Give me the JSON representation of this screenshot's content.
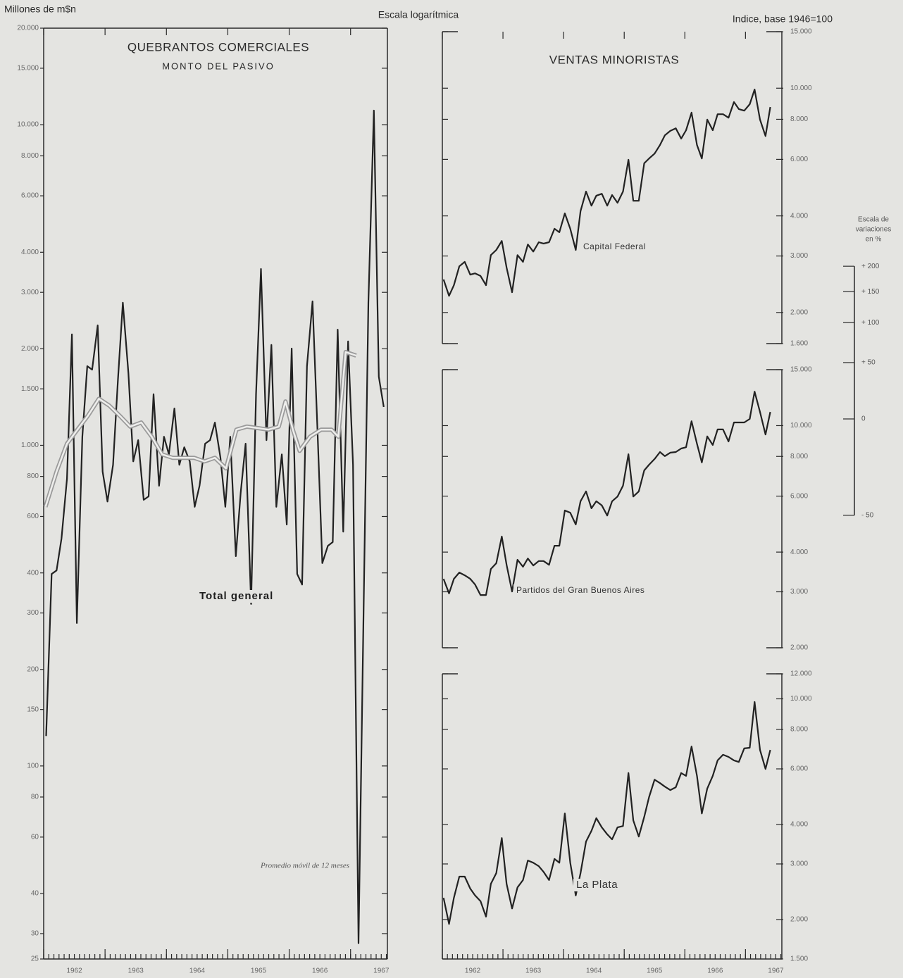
{
  "header": {
    "left_unit": "Millones de m$n",
    "center": "Escala logarítmica",
    "right_unit": "Indice, base 1946=100"
  },
  "variation_scale": {
    "title_lines": [
      "Escala de",
      "variaciones",
      "en %"
    ],
    "ticks": [
      {
        "value": 200,
        "label": "+ 200"
      },
      {
        "value": 150,
        "label": "+ 150"
      },
      {
        "value": 100,
        "label": "+ 100"
      },
      {
        "value": 50,
        "label": "+ 50"
      },
      0,
      {
        "value": -50,
        "label": "- 50"
      }
    ]
  },
  "chart_data": [
    {
      "type": "line",
      "title": "QUEBRANTOS COMERCIALES",
      "subtitle": "MONTO DEL PASIVO",
      "log_scale": true,
      "grid": false,
      "xlim": [
        1962,
        1967.6
      ],
      "ylim": [
        25,
        20000
      ],
      "xticks": [
        {
          "value": 1962.5,
          "label": "1962"
        },
        {
          "value": 1963.5,
          "label": "1963"
        },
        {
          "value": 1964.5,
          "label": "1964"
        },
        {
          "value": 1965.5,
          "label": "1965"
        },
        {
          "value": 1966.5,
          "label": "1966"
        },
        {
          "value": 1967.5,
          "label": "1967"
        }
      ],
      "yticks": [
        {
          "value": 20000,
          "label": "20.000"
        },
        {
          "value": 15000,
          "label": "15.000"
        },
        {
          "value": 10000,
          "label": "10.000"
        },
        {
          "value": 8000,
          "label": "8.000"
        },
        {
          "value": 6000,
          "label": "6.000"
        },
        {
          "value": 4000,
          "label": "4.000"
        },
        {
          "value": 3000,
          "label": "3.000"
        },
        {
          "value": 2000,
          "label": "2.000"
        },
        {
          "value": 1500,
          "label": "1.500"
        },
        {
          "value": 1000,
          "label": "1.000"
        },
        800,
        600,
        400,
        300,
        200,
        150,
        100,
        80,
        60,
        40,
        30,
        25
      ],
      "series": [
        {
          "name": "Total general",
          "color": "#222222",
          "line_style": "solid",
          "x": [
            1962.04,
            1962.13,
            1962.21,
            1962.29,
            1962.38,
            1962.46,
            1962.54,
            1962.63,
            1962.71,
            1962.79,
            1962.88,
            1962.96,
            1963.04,
            1963.13,
            1963.21,
            1963.29,
            1963.38,
            1963.46,
            1963.54,
            1963.63,
            1963.71,
            1963.79,
            1963.88,
            1963.96,
            1964.04,
            1964.13,
            1964.21,
            1964.29,
            1964.38,
            1964.46,
            1964.54,
            1964.63,
            1964.71,
            1964.79,
            1964.88,
            1964.96,
            1965.04,
            1965.13,
            1965.21,
            1965.29,
            1965.38,
            1965.46,
            1965.54,
            1965.63,
            1965.71,
            1965.79,
            1965.88,
            1965.96,
            1966.04,
            1966.13,
            1966.21,
            1966.29,
            1966.38,
            1966.46,
            1966.54,
            1966.63,
            1966.71,
            1966.79,
            1966.88,
            1966.96,
            1967.04,
            1967.13,
            1967.21,
            1967.29,
            1967.38,
            1967.46,
            1967.54
          ],
          "values": [
            124,
            397,
            407,
            512,
            787,
            2218,
            279,
            1064,
            1766,
            1722,
            2366,
            828,
            668,
            869,
            1596,
            2786,
            1679,
            891,
            1038,
            676,
            693,
            1443,
            748,
            1064,
            937,
            1303,
            869,
            986,
            891,
            643,
            748,
            1012,
            1038,
            1178,
            914,
            643,
            1064,
            451,
            711,
            1012,
            320,
            1443,
            3548,
            1038,
            2056,
            643,
            937,
            566,
            2004,
            397,
            368,
            1766,
            2812,
            1119,
            429,
            486,
            499,
            2296,
            538,
            2109,
            869,
            28,
            286,
            2786,
            11066,
            1637,
            1318
          ]
        },
        {
          "name": "Promedio móvil de 12 meses",
          "color": "#9a9a9a",
          "line_style": "double",
          "x": [
            1962.03,
            1962.21,
            1962.38,
            1962.55,
            1962.72,
            1962.9,
            1963.07,
            1963.24,
            1963.41,
            1963.59,
            1963.76,
            1963.93,
            1964.1,
            1964.28,
            1964.45,
            1964.62,
            1964.79,
            1964.97,
            1965.14,
            1965.31,
            1965.48,
            1965.66,
            1965.83,
            1965.94,
            1966.06,
            1966.17,
            1966.34,
            1966.52,
            1966.69,
            1966.8,
            1966.92,
            1967.09
          ],
          "values": [
            643,
            828,
            1012,
            1119,
            1236,
            1397,
            1330,
            1236,
            1144,
            1178,
            1064,
            937,
            914,
            914,
            914,
            891,
            914,
            847,
            1119,
            1144,
            1132,
            1119,
            1144,
            1371,
            1119,
            961,
            1064,
            1119,
            1119,
            1064,
            1954,
            1905
          ]
        }
      ]
    },
    {
      "type": "line",
      "title": "VENTAS MINORISTAS",
      "log_scale": true,
      "grid": false,
      "xlim": [
        1962,
        1967.6
      ],
      "ylim": [
        1600,
        15000
      ],
      "yticks": [
        {
          "value": 15000,
          "label": "15.000"
        },
        {
          "value": 10000,
          "label": "10.000"
        },
        {
          "value": 8000,
          "label": "8.000"
        },
        {
          "value": 6000,
          "label": "6.000"
        },
        {
          "value": 4000,
          "label": "4.000"
        },
        {
          "value": 3000,
          "label": "3.000"
        },
        {
          "value": 2000,
          "label": "2.000"
        },
        {
          "value": 1600,
          "label": "1.600"
        }
      ],
      "series": [
        {
          "name": "Capital Federal",
          "color": "#222222",
          "line_style": "solid",
          "x": [
            1962.02,
            1962.11,
            1962.19,
            1962.28,
            1962.37,
            1962.46,
            1962.54,
            1962.63,
            1962.72,
            1962.8,
            1962.89,
            1962.98,
            1963.06,
            1963.15,
            1963.24,
            1963.33,
            1963.41,
            1963.5,
            1963.59,
            1963.67,
            1963.76,
            1963.85,
            1963.93,
            1964.02,
            1964.11,
            1964.2,
            1964.28,
            1964.37,
            1964.46,
            1964.54,
            1964.63,
            1964.72,
            1964.8,
            1964.89,
            1964.98,
            1965.07,
            1965.15,
            1965.24,
            1965.33,
            1965.41,
            1965.5,
            1965.59,
            1965.67,
            1965.76,
            1965.85,
            1965.94,
            1966.02,
            1966.11,
            1966.2,
            1966.28,
            1966.37,
            1966.46,
            1966.54,
            1966.63,
            1966.72,
            1966.81,
            1966.89,
            1966.98,
            1967.07,
            1967.15,
            1967.24,
            1967.33,
            1967.41
          ],
          "values": [
            2535,
            2254,
            2432,
            2786,
            2877,
            2624,
            2649,
            2600,
            2432,
            3020,
            3133,
            3342,
            2761,
            2312,
            3020,
            2877,
            3258,
            3097,
            3311,
            3281,
            3311,
            3648,
            3556,
            4074,
            3648,
            3133,
            4140,
            4764,
            4305,
            4624,
            4688,
            4305,
            4645,
            4395,
            4764,
            5984,
            4457,
            4457,
            5834,
            6039,
            6252,
            6653,
            7129,
            7362,
            7499,
            6966,
            7396,
            8395,
            6653,
            6039,
            7980,
            7396,
            8299,
            8299,
            8091,
            9057,
            8610,
            8511,
            8913,
            9908,
            7980,
            7096,
            8730
          ]
        }
      ]
    },
    {
      "type": "line",
      "log_scale": true,
      "grid": false,
      "xlim": [
        1962,
        1967.6
      ],
      "ylim": [
        2000,
        15000
      ],
      "yticks": [
        {
          "value": 15000,
          "label": "15.000"
        },
        {
          "value": 10000,
          "label": "10.000"
        },
        {
          "value": 8000,
          "label": "8.000"
        },
        {
          "value": 6000,
          "label": "6.000"
        },
        {
          "value": 4000,
          "label": "4.000"
        },
        {
          "value": 3000,
          "label": "3.000"
        },
        {
          "value": 2000,
          "label": "2.000"
        }
      ],
      "series": [
        {
          "name": "Partidos del Gran Buenos Aires",
          "color": "#222222",
          "line_style": "solid",
          "x": [
            1962.02,
            1962.11,
            1962.19,
            1962.28,
            1962.37,
            1962.46,
            1962.54,
            1962.63,
            1962.72,
            1962.8,
            1962.89,
            1962.98,
            1963.06,
            1963.15,
            1963.24,
            1963.33,
            1963.41,
            1963.5,
            1963.59,
            1963.67,
            1963.76,
            1963.85,
            1963.93,
            1964.02,
            1964.11,
            1964.2,
            1964.28,
            1964.37,
            1964.46,
            1964.54,
            1964.63,
            1964.72,
            1964.8,
            1964.89,
            1964.98,
            1965.07,
            1965.15,
            1965.24,
            1965.33,
            1965.41,
            1965.5,
            1965.59,
            1965.67,
            1965.76,
            1965.85,
            1965.94,
            1966.02,
            1966.11,
            1966.2,
            1966.28,
            1966.37,
            1966.46,
            1966.54,
            1966.63,
            1966.72,
            1966.81,
            1966.89,
            1966.98,
            1967.07,
            1967.15,
            1967.24,
            1967.33,
            1967.41
          ],
          "values": [
            3296,
            2965,
            3296,
            3451,
            3381,
            3296,
            3162,
            2931,
            2931,
            3540,
            3690,
            4477,
            3648,
            3006,
            3784,
            3597,
            3819,
            3631,
            3750,
            3750,
            3648,
            4188,
            4188,
            5408,
            5321,
            4887,
            5781,
            6209,
            5495,
            5781,
            5610,
            5212,
            5781,
            5984,
            6471,
            8128,
            5984,
            6209,
            7228,
            7534,
            7852,
            8260,
            8017,
            8222,
            8260,
            8472,
            8551,
            10328,
            8770,
            7656,
            9247,
            8690,
            9727,
            9727,
            8913,
            10233,
            10233,
            10233,
            10495,
            12794,
            11041,
            9376,
            11041
          ]
        }
      ]
    },
    {
      "type": "line",
      "log_scale": true,
      "grid": false,
      "xlim": [
        1962,
        1967.6
      ],
      "ylim": [
        1500,
        12000
      ],
      "xticks": [
        {
          "value": 1962.5,
          "label": "1962"
        },
        {
          "value": 1963.5,
          "label": "1963"
        },
        {
          "value": 1964.5,
          "label": "1964"
        },
        {
          "value": 1965.5,
          "label": "1965"
        },
        {
          "value": 1966.5,
          "label": "1966"
        },
        {
          "value": 1967.5,
          "label": "1967"
        }
      ],
      "yticks": [
        {
          "value": 12000,
          "label": "12.000"
        },
        {
          "value": 10000,
          "label": "10.000"
        },
        {
          "value": 8000,
          "label": "8.000"
        },
        {
          "value": 6000,
          "label": "6.000"
        },
        {
          "value": 4000,
          "label": "4.000"
        },
        {
          "value": 3000,
          "label": "3.000"
        },
        {
          "value": 2000,
          "label": "2.000"
        },
        {
          "value": 1500,
          "label": "1.500"
        }
      ],
      "series": [
        {
          "name": "La Plata",
          "color": "#222222",
          "line_style": "solid",
          "x": [
            1962.02,
            1962.11,
            1962.19,
            1962.28,
            1962.37,
            1962.46,
            1962.54,
            1962.63,
            1962.72,
            1962.8,
            1962.89,
            1962.98,
            1963.06,
            1963.15,
            1963.24,
            1963.33,
            1963.41,
            1963.5,
            1963.59,
            1963.67,
            1963.76,
            1963.85,
            1963.93,
            1964.02,
            1964.11,
            1964.2,
            1964.28,
            1964.37,
            1964.46,
            1964.54,
            1964.63,
            1964.72,
            1964.8,
            1964.89,
            1964.98,
            1965.07,
            1965.15,
            1965.24,
            1965.33,
            1965.41,
            1965.5,
            1965.59,
            1965.67,
            1965.76,
            1965.85,
            1965.94,
            1966.02,
            1966.11,
            1966.2,
            1966.28,
            1966.37,
            1966.46,
            1966.54,
            1966.63,
            1966.72,
            1966.81,
            1966.89,
            1966.98,
            1967.07,
            1967.15,
            1967.24,
            1967.33,
            1967.41
          ],
          "values": [
            2344,
            1936,
            2344,
            2735,
            2735,
            2506,
            2383,
            2286,
            2042,
            2594,
            2807,
            3623,
            2594,
            2168,
            2529,
            2667,
            3076,
            3027,
            2951,
            2831,
            2667,
            3112,
            3027,
            4335,
            3027,
            2383,
            2807,
            3532,
            3819,
            4188,
            3917,
            3724,
            3589,
            3917,
            3954,
            5821,
            4121,
            3664,
            4227,
            4887,
            5546,
            5408,
            5272,
            5140,
            5248,
            5821,
            5702,
            7063,
            5702,
            4335,
            5200,
            5702,
            6383,
            6653,
            6546,
            6383,
            6310,
            6966,
            6998,
            9772,
            6887,
            5998,
            6887
          ]
        }
      ]
    }
  ]
}
